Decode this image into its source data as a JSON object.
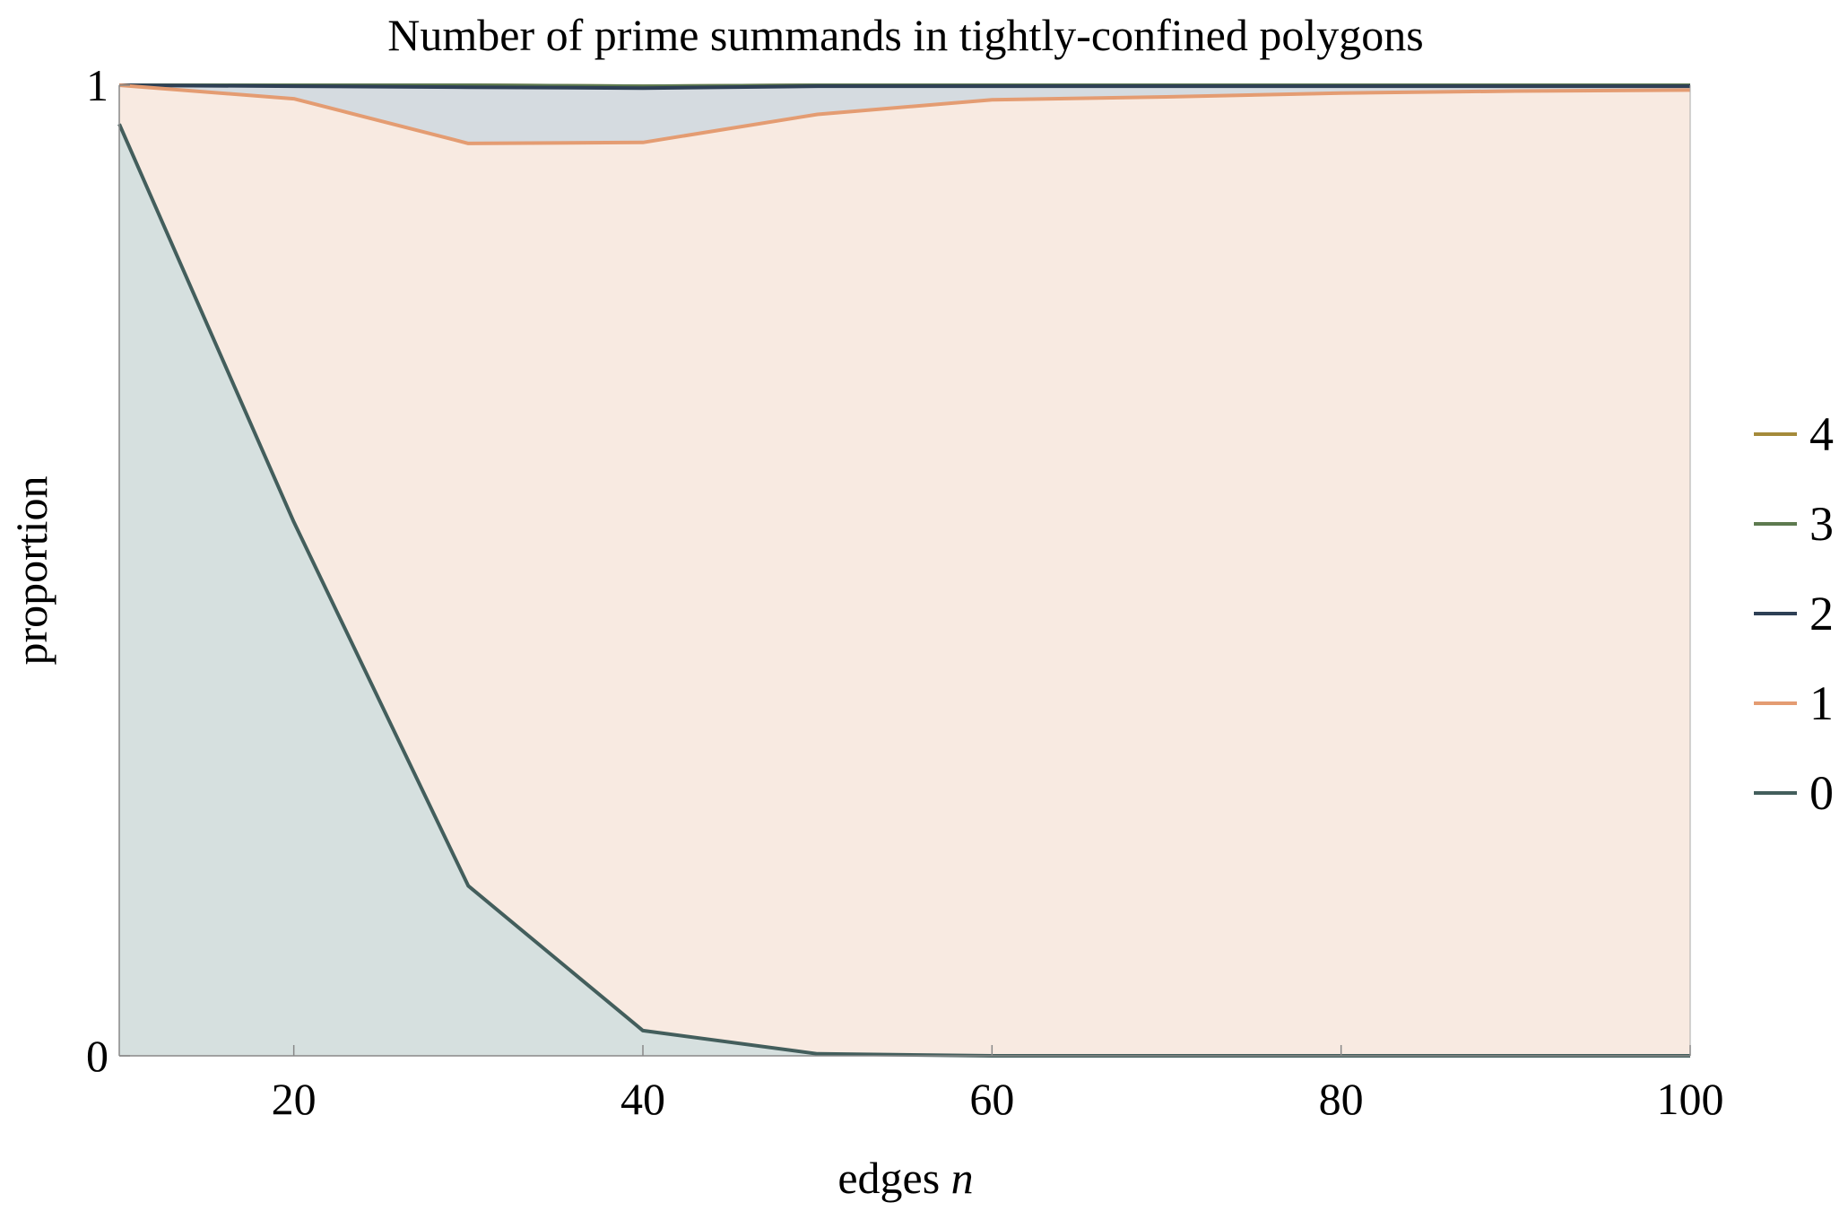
{
  "chart_data": {
    "type": "area",
    "stacked": true,
    "title": "Number of prime summands in tightly-confined polygons",
    "xlabel": "edges",
    "xlabel_var": "n",
    "ylabel": "proportion",
    "xlim": [
      10,
      100
    ],
    "ylim": [
      0,
      1
    ],
    "x_ticks": [
      20,
      40,
      60,
      80,
      100
    ],
    "y_ticks": [
      0,
      1
    ],
    "grid": false,
    "legend_position": "right",
    "x": [
      10,
      20,
      30,
      40,
      50,
      60,
      70,
      80,
      90,
      100
    ],
    "series": [
      {
        "name": "0",
        "color": "#435e5c",
        "fill": "#d6e0df",
        "values": [
          0.96,
          0.55,
          0.175,
          0.026,
          0.002,
          0.0,
          0.0,
          0.0,
          0.0,
          0.0
        ]
      },
      {
        "name": "1",
        "color": "#e49c72",
        "fill": "#f8eae1",
        "values": [
          0.04,
          0.436,
          0.765,
          0.915,
          0.968,
          0.985,
          0.988,
          0.992,
          0.994,
          0.995
        ]
      },
      {
        "name": "2",
        "color": "#2e4055",
        "fill": "#d5dbe0",
        "values": [
          0.0,
          0.013,
          0.058,
          0.056,
          0.029,
          0.014,
          0.011,
          0.007,
          0.005,
          0.004
        ]
      },
      {
        "name": "3",
        "color": "#5d7a4f",
        "fill": "#dce4d8",
        "values": [
          0.0,
          0.001,
          0.002,
          0.002,
          0.001,
          0.001,
          0.001,
          0.001,
          0.001,
          0.001
        ]
      },
      {
        "name": "4",
        "color": "#a48a3a",
        "fill": "#ece6d5",
        "values": [
          0.0,
          0.0,
          0.0,
          0.0,
          0.0,
          0.0,
          0.0,
          0.0,
          0.0,
          0.0
        ]
      }
    ]
  }
}
